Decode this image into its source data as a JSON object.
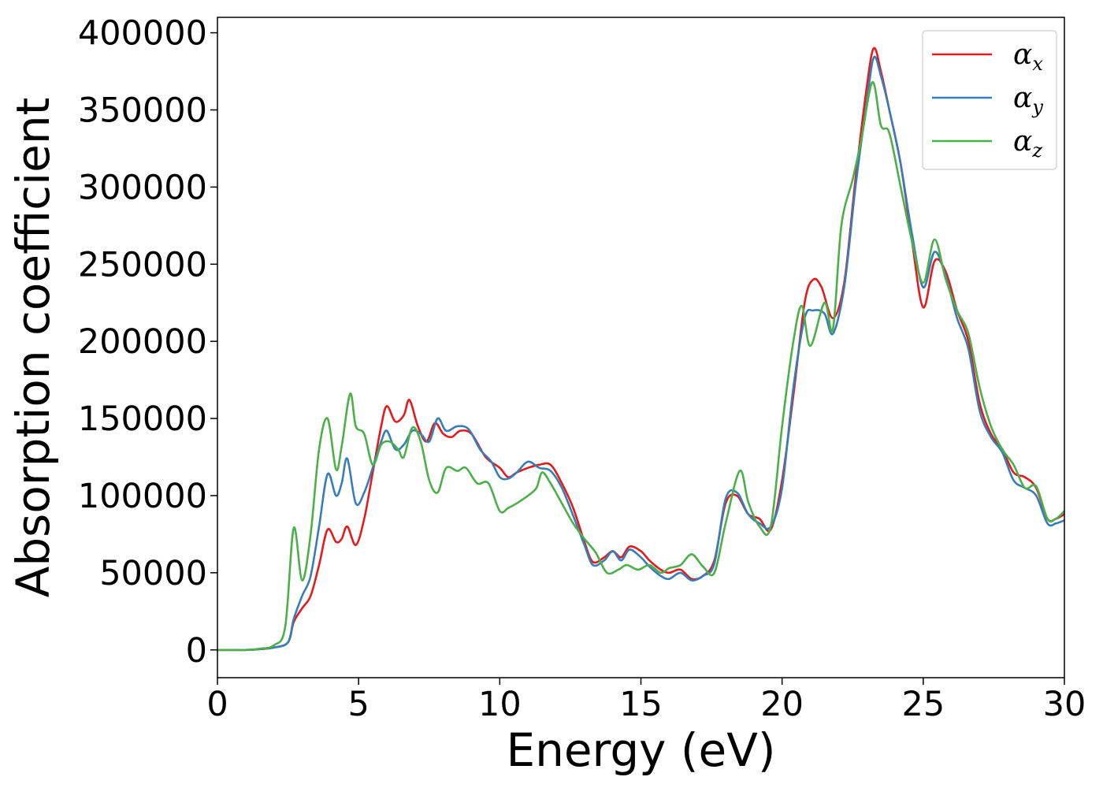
{
  "chart_data": {
    "type": "line",
    "xlabel": "Energy (eV)",
    "ylabel": "Absorption coefficient",
    "xlim": [
      0,
      30
    ],
    "ylim": [
      -18000,
      410000
    ],
    "xticks": [
      0,
      5,
      10,
      15,
      20,
      25,
      30
    ],
    "yticks": [
      0,
      50000,
      100000,
      150000,
      200000,
      250000,
      300000,
      350000,
      400000
    ],
    "grid": false,
    "legend_position": "top-right",
    "series": [
      {
        "name": "α_x",
        "symbol": "α",
        "subscript": "x",
        "color": "#e41a1c",
        "points": [
          [
            0,
            0
          ],
          [
            1,
            0
          ],
          [
            1.5,
            500
          ],
          [
            2,
            1500
          ],
          [
            2.5,
            5000
          ],
          [
            2.7,
            18000
          ],
          [
            3,
            27000
          ],
          [
            3.3,
            35000
          ],
          [
            3.6,
            55000
          ],
          [
            3.9,
            78000
          ],
          [
            4.2,
            70000
          ],
          [
            4.4,
            72000
          ],
          [
            4.6,
            80000
          ],
          [
            4.9,
            68000
          ],
          [
            5.2,
            85000
          ],
          [
            5.5,
            115000
          ],
          [
            5.8,
            145000
          ],
          [
            6,
            158000
          ],
          [
            6.3,
            148000
          ],
          [
            6.6,
            152000
          ],
          [
            6.8,
            162000
          ],
          [
            7.1,
            145000
          ],
          [
            7.4,
            135000
          ],
          [
            7.7,
            147000
          ],
          [
            8,
            140000
          ],
          [
            8.3,
            138000
          ],
          [
            8.6,
            142000
          ],
          [
            9,
            140000
          ],
          [
            9.5,
            125000
          ],
          [
            10,
            118000
          ],
          [
            10.3,
            112000
          ],
          [
            10.6,
            115000
          ],
          [
            11,
            118000
          ],
          [
            11.4,
            120000
          ],
          [
            11.8,
            120000
          ],
          [
            12.2,
            108000
          ],
          [
            12.6,
            92000
          ],
          [
            13,
            70000
          ],
          [
            13.3,
            57000
          ],
          [
            13.7,
            60000
          ],
          [
            14,
            64000
          ],
          [
            14.3,
            60000
          ],
          [
            14.6,
            67000
          ],
          [
            15,
            64000
          ],
          [
            15.3,
            58000
          ],
          [
            15.7,
            52000
          ],
          [
            16,
            50000
          ],
          [
            16.4,
            52000
          ],
          [
            16.8,
            46000
          ],
          [
            17.2,
            48000
          ],
          [
            17.6,
            58000
          ],
          [
            18,
            95000
          ],
          [
            18.4,
            100000
          ],
          [
            18.8,
            88000
          ],
          [
            19.2,
            85000
          ],
          [
            19.6,
            78000
          ],
          [
            20,
            110000
          ],
          [
            20.4,
            165000
          ],
          [
            20.8,
            225000
          ],
          [
            21.1,
            240000
          ],
          [
            21.4,
            235000
          ],
          [
            21.8,
            215000
          ],
          [
            22.2,
            238000
          ],
          [
            22.6,
            305000
          ],
          [
            23,
            365000
          ],
          [
            23.25,
            390000
          ],
          [
            23.5,
            375000
          ],
          [
            23.8,
            350000
          ],
          [
            24.2,
            315000
          ],
          [
            24.6,
            265000
          ],
          [
            25,
            222000
          ],
          [
            25.4,
            252000
          ],
          [
            25.8,
            245000
          ],
          [
            26.2,
            220000
          ],
          [
            26.6,
            200000
          ],
          [
            27,
            160000
          ],
          [
            27.4,
            140000
          ],
          [
            27.8,
            130000
          ],
          [
            28.2,
            115000
          ],
          [
            28.6,
            112000
          ],
          [
            29,
            105000
          ],
          [
            29.4,
            85000
          ],
          [
            29.7,
            85000
          ],
          [
            30,
            88000
          ]
        ]
      },
      {
        "name": "α_y",
        "symbol": "α",
        "subscript": "y",
        "color": "#377eb8",
        "points": [
          [
            0,
            0
          ],
          [
            1,
            0
          ],
          [
            1.5,
            500
          ],
          [
            2,
            1500
          ],
          [
            2.5,
            5000
          ],
          [
            2.7,
            20000
          ],
          [
            3,
            35000
          ],
          [
            3.3,
            48000
          ],
          [
            3.6,
            80000
          ],
          [
            3.9,
            114000
          ],
          [
            4.2,
            100000
          ],
          [
            4.4,
            108000
          ],
          [
            4.6,
            124000
          ],
          [
            4.9,
            95000
          ],
          [
            5.2,
            102000
          ],
          [
            5.5,
            118000
          ],
          [
            5.8,
            135000
          ],
          [
            6,
            142000
          ],
          [
            6.3,
            130000
          ],
          [
            6.6,
            133000
          ],
          [
            6.9,
            142000
          ],
          [
            7.2,
            140000
          ],
          [
            7.5,
            135000
          ],
          [
            7.8,
            150000
          ],
          [
            8.1,
            142000
          ],
          [
            8.5,
            145000
          ],
          [
            8.9,
            143000
          ],
          [
            9.3,
            130000
          ],
          [
            9.7,
            122000
          ],
          [
            10,
            112000
          ],
          [
            10.3,
            111000
          ],
          [
            10.6,
            115000
          ],
          [
            11,
            122000
          ],
          [
            11.4,
            118000
          ],
          [
            11.8,
            116000
          ],
          [
            12.2,
            105000
          ],
          [
            12.6,
            87000
          ],
          [
            13,
            68000
          ],
          [
            13.3,
            55000
          ],
          [
            13.7,
            58000
          ],
          [
            14,
            64000
          ],
          [
            14.3,
            58000
          ],
          [
            14.6,
            65000
          ],
          [
            15,
            60000
          ],
          [
            15.3,
            54000
          ],
          [
            15.7,
            48000
          ],
          [
            16,
            46000
          ],
          [
            16.4,
            50000
          ],
          [
            16.8,
            45000
          ],
          [
            17.2,
            48000
          ],
          [
            17.6,
            56000
          ],
          [
            18,
            98000
          ],
          [
            18.4,
            102000
          ],
          [
            18.8,
            88000
          ],
          [
            19.2,
            82000
          ],
          [
            19.6,
            80000
          ],
          [
            20,
            105000
          ],
          [
            20.4,
            170000
          ],
          [
            20.8,
            215000
          ],
          [
            21.1,
            220000
          ],
          [
            21.5,
            218000
          ],
          [
            21.8,
            205000
          ],
          [
            22.2,
            235000
          ],
          [
            22.6,
            300000
          ],
          [
            23,
            355000
          ],
          [
            23.25,
            384000
          ],
          [
            23.5,
            372000
          ],
          [
            23.8,
            350000
          ],
          [
            24.2,
            315000
          ],
          [
            24.6,
            270000
          ],
          [
            25,
            235000
          ],
          [
            25.4,
            258000
          ],
          [
            25.8,
            242000
          ],
          [
            26.2,
            215000
          ],
          [
            26.6,
            195000
          ],
          [
            27,
            155000
          ],
          [
            27.4,
            138000
          ],
          [
            27.8,
            128000
          ],
          [
            28.2,
            110000
          ],
          [
            28.6,
            105000
          ],
          [
            29,
            100000
          ],
          [
            29.4,
            82000
          ],
          [
            29.7,
            82000
          ],
          [
            30,
            84000
          ]
        ]
      },
      {
        "name": "α_z",
        "symbol": "α",
        "subscript": "z",
        "color": "#4daf4a",
        "points": [
          [
            0,
            0
          ],
          [
            1,
            0
          ],
          [
            1.5,
            800
          ],
          [
            2,
            3000
          ],
          [
            2.4,
            15000
          ],
          [
            2.7,
            79000
          ],
          [
            3,
            45000
          ],
          [
            3.3,
            75000
          ],
          [
            3.6,
            130000
          ],
          [
            3.9,
            150000
          ],
          [
            4.2,
            117000
          ],
          [
            4.4,
            132000
          ],
          [
            4.7,
            166000
          ],
          [
            4.9,
            145000
          ],
          [
            5.2,
            140000
          ],
          [
            5.5,
            120000
          ],
          [
            5.8,
            133000
          ],
          [
            6.1,
            135000
          ],
          [
            6.4,
            130000
          ],
          [
            6.6,
            125000
          ],
          [
            6.9,
            144000
          ],
          [
            7.2,
            135000
          ],
          [
            7.5,
            110000
          ],
          [
            7.8,
            102000
          ],
          [
            8.1,
            118000
          ],
          [
            8.5,
            116000
          ],
          [
            8.8,
            118000
          ],
          [
            9.2,
            108000
          ],
          [
            9.6,
            108000
          ],
          [
            10,
            90000
          ],
          [
            10.3,
            92000
          ],
          [
            10.6,
            95000
          ],
          [
            11,
            100000
          ],
          [
            11.3,
            105000
          ],
          [
            11.5,
            115000
          ],
          [
            11.8,
            108000
          ],
          [
            12.2,
            95000
          ],
          [
            12.6,
            82000
          ],
          [
            13,
            72000
          ],
          [
            13.4,
            63000
          ],
          [
            13.8,
            50000
          ],
          [
            14.2,
            52000
          ],
          [
            14.5,
            55000
          ],
          [
            14.9,
            52000
          ],
          [
            15.3,
            55000
          ],
          [
            15.7,
            50000
          ],
          [
            16,
            53000
          ],
          [
            16.4,
            55000
          ],
          [
            16.8,
            62000
          ],
          [
            17.2,
            54000
          ],
          [
            17.6,
            50000
          ],
          [
            18,
            82000
          ],
          [
            18.5,
            116000
          ],
          [
            18.8,
            96000
          ],
          [
            19.2,
            80000
          ],
          [
            19.6,
            80000
          ],
          [
            20,
            145000
          ],
          [
            20.4,
            200000
          ],
          [
            20.7,
            223000
          ],
          [
            21,
            197000
          ],
          [
            21.5,
            225000
          ],
          [
            21.8,
            208000
          ],
          [
            22.1,
            275000
          ],
          [
            22.5,
            305000
          ],
          [
            22.8,
            330000
          ],
          [
            23.2,
            368000
          ],
          [
            23.5,
            340000
          ],
          [
            23.8,
            335000
          ],
          [
            24.2,
            300000
          ],
          [
            24.6,
            265000
          ],
          [
            25,
            238000
          ],
          [
            25.4,
            266000
          ],
          [
            25.8,
            240000
          ],
          [
            26.2,
            220000
          ],
          [
            26.6,
            205000
          ],
          [
            27,
            170000
          ],
          [
            27.4,
            145000
          ],
          [
            27.8,
            130000
          ],
          [
            28.2,
            120000
          ],
          [
            28.6,
            105000
          ],
          [
            29,
            106000
          ],
          [
            29.4,
            85000
          ],
          [
            29.7,
            85000
          ],
          [
            30,
            90000
          ]
        ]
      }
    ]
  }
}
